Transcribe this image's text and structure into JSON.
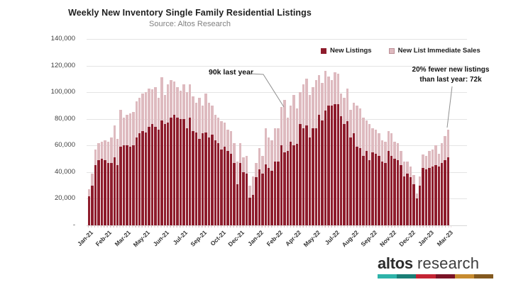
{
  "header": {
    "title": "Weekly New Inventory Single Family Residential Listings",
    "subtitle": "Source: Altos Research"
  },
  "legend": [
    {
      "label": "New Listings",
      "color": "#8e1c2c"
    },
    {
      "label": "New List Immediate Sales",
      "color": "#debabf"
    }
  ],
  "annotations": {
    "left_callout": "90k last year",
    "right_callout_line1": "20% fewer new listings",
    "right_callout_line2": "than last year: 72k"
  },
  "y_axis": {
    "tick_labels": [
      "140,000",
      "120,000",
      "100,000",
      "80,000",
      "60,000",
      "40,000",
      "20,000",
      "-"
    ],
    "tick_values_thousands": [
      140,
      120,
      100,
      80,
      60,
      40,
      20,
      0
    ]
  },
  "chart_data": {
    "type": "bar",
    "subtype": "stacked-weekly",
    "values_unit": "thousands of listings",
    "ylim_thousands": [
      0,
      140
    ],
    "grid": "horizontal",
    "legend_position": "top-right-inside",
    "x_tick_labels": [
      "Jan-21",
      "Feb-21",
      "Mar-21",
      "May-21",
      "Jun-21",
      "Jul-21",
      "Sep-21",
      "Oct-21",
      "Dec-21",
      "Jan-22",
      "Feb-22",
      "Apr-22",
      "May-22",
      "Jul-22",
      "Aug-22",
      "Sep-22",
      "Nov-22",
      "Dec-22",
      "Jan-23",
      "Mar-23"
    ],
    "x_label_every_n_bars": 6,
    "series": [
      {
        "name": "New Listings",
        "color": "#8e1c2c",
        "values": [
          22,
          30,
          45,
          49,
          50,
          49,
          47,
          47,
          51,
          45,
          59,
          60,
          60,
          59,
          60,
          66,
          69,
          71,
          70,
          74,
          76,
          74,
          72,
          79,
          76,
          77,
          81,
          83,
          81,
          80,
          80,
          73,
          81,
          71,
          70,
          65,
          69,
          70,
          66,
          68,
          64,
          62,
          57,
          59,
          56,
          54,
          47,
          31,
          47,
          40,
          39,
          21,
          23,
          36,
          42,
          39,
          46,
          43,
          41,
          48,
          48,
          60,
          55,
          56,
          63,
          60,
          61,
          76,
          73,
          75,
          66,
          73,
          73,
          83,
          79,
          86,
          90,
          90,
          91,
          91,
          82,
          76,
          78,
          66,
          69,
          59,
          58,
          52,
          56,
          49,
          55,
          54,
          52,
          48,
          47,
          56,
          52,
          50,
          49,
          45,
          37,
          39,
          36,
          31,
          20,
          30,
          43,
          42,
          43,
          44,
          45,
          44,
          47,
          49,
          51
        ]
      },
      {
        "name": "New List Immediate Sales",
        "color": "#debabf",
        "values": [
          5,
          9,
          12,
          13,
          13,
          15,
          16,
          19,
          24,
          20,
          28,
          21,
          23,
          25,
          25,
          27,
          27,
          28,
          30,
          29,
          26,
          30,
          24,
          32,
          22,
          29,
          28,
          25,
          23,
          21,
          26,
          27,
          25,
          26,
          22,
          31,
          21,
          29,
          26,
          22,
          19,
          19,
          21,
          18,
          16,
          17,
          15,
          17,
          15,
          11,
          13,
          9,
          14,
          11,
          16,
          13,
          27,
          23,
          23,
          25,
          25,
          29,
          39,
          25,
          27,
          38,
          27,
          24,
          33,
          35,
          32,
          31,
          36,
          30,
          28,
          30,
          22,
          19,
          24,
          23,
          17,
          20,
          25,
          21,
          23,
          31,
          30,
          29,
          23,
          27,
          18,
          18,
          17,
          16,
          16,
          15,
          17,
          13,
          13,
          11,
          11,
          9,
          8,
          7,
          4,
          7,
          10,
          10,
          13,
          13,
          15,
          10,
          15,
          18,
          21
        ]
      }
    ],
    "annotated_points": [
      {
        "label": "90k last year",
        "approx_week": "Feb/Mar 2022",
        "total_thousands": 90
      },
      {
        "label": "20% fewer new listings than last year: 72k",
        "approx_week": "Mar 2023",
        "total_thousands": 72
      }
    ]
  },
  "logo": {
    "word1": "altos",
    "word2": "research",
    "bar_colors": [
      "#2eb3a9",
      "#1a7e76",
      "#c42434",
      "#7b1326",
      "#c78b2f",
      "#83591f"
    ]
  },
  "colors": {
    "bar_dark": "#8e1c2c",
    "bar_pink": "#debabf",
    "gridline": "#e4e4e4",
    "callout_line": "#8f8f8f"
  }
}
